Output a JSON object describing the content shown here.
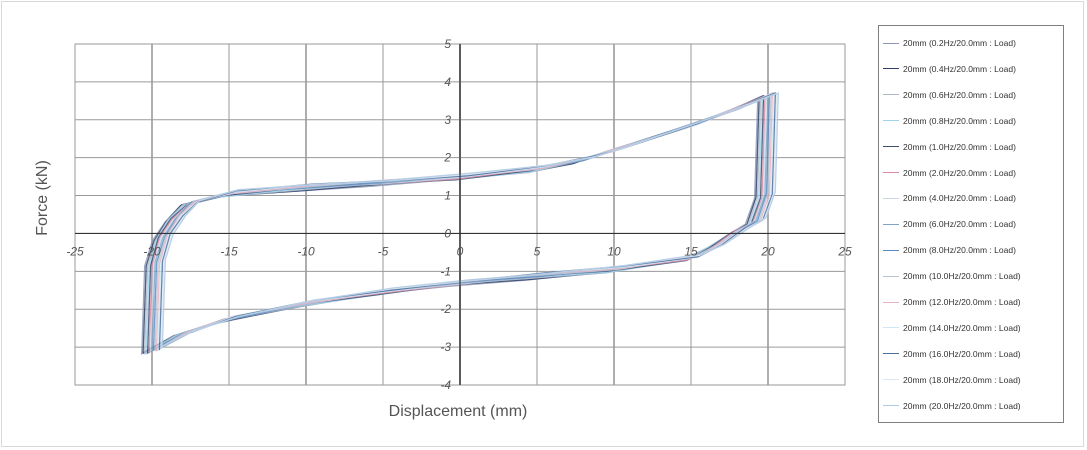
{
  "chart_data": {
    "type": "line",
    "title": "",
    "xlabel": "Displacement (mm)",
    "ylabel": "Force (kN)",
    "xlim": [
      -25,
      25
    ],
    "ylim": [
      -4,
      5
    ],
    "x_ticks": [
      -25,
      -20,
      -15,
      -10,
      -5,
      0,
      5,
      10,
      15,
      20,
      25
    ],
    "y_ticks": [
      -4,
      -3,
      -2,
      -1,
      0,
      1,
      2,
      3,
      4,
      5
    ],
    "grid": true,
    "legend_position": "right",
    "series": [
      {
        "name": "20mm (0.2Hz/20.0mm : Load)",
        "color": "#8a97b5"
      },
      {
        "name": "20mm (0.4Hz/20.0mm : Load)",
        "color": "#2f3f66"
      },
      {
        "name": "20mm (0.6Hz/20.0mm : Load)",
        "color": "#a9b7c8"
      },
      {
        "name": "20mm (0.8Hz/20.0mm : Load)",
        "color": "#9fd3f0"
      },
      {
        "name": "20mm (1.0Hz/20.0mm : Load)",
        "color": "#3d4e6e"
      },
      {
        "name": "20mm (2.0Hz/20.0mm : Load)",
        "color": "#d98aa4"
      },
      {
        "name": "20mm (4.0Hz/20.0mm : Load)",
        "color": "#c7d9e8"
      },
      {
        "name": "20mm (6.0Hz/20.0mm : Load)",
        "color": "#7fa6c9"
      },
      {
        "name": "20mm (8.0Hz/20.0mm : Load)",
        "color": "#5a8bbf"
      },
      {
        "name": "20mm (10.0Hz/20.0mm : Load)",
        "color": "#b8c4d4"
      },
      {
        "name": "20mm (12.0Hz/20.0mm : Load)",
        "color": "#e5b3c3"
      },
      {
        "name": "20mm (14.0Hz/20.0mm : Load)",
        "color": "#cfe6f5"
      },
      {
        "name": "20mm (16.0Hz/20.0mm : Load)",
        "color": "#4a6fa0"
      },
      {
        "name": "20mm (18.0Hz/20.0mm : Load)",
        "color": "#dde7f0"
      },
      {
        "name": "20mm (20.0Hz/20.0mm : Load)",
        "color": "#aec9e3"
      }
    ],
    "loop": {
      "upper": [
        [
          -20,
          -3.1
        ],
        [
          -19.8,
          -0.8
        ],
        [
          -19.3,
          -0.1
        ],
        [
          -18.5,
          0.4
        ],
        [
          -17.5,
          0.8
        ],
        [
          -15,
          1.05
        ],
        [
          -10,
          1.22
        ],
        [
          -5,
          1.35
        ],
        [
          0,
          1.48
        ],
        [
          5,
          1.7
        ],
        [
          8,
          1.95
        ],
        [
          10,
          2.2
        ],
        [
          15,
          2.85
        ],
        [
          18,
          3.3
        ],
        [
          20,
          3.65
        ]
      ],
      "right_drop": [
        [
          20,
          3.65
        ],
        [
          19.8,
          1.0
        ],
        [
          19.2,
          0.3
        ],
        [
          18,
          0.05
        ],
        [
          16.5,
          -0.35
        ],
        [
          15,
          -0.65
        ]
      ],
      "lower": [
        [
          15,
          -0.65
        ],
        [
          10,
          -0.95
        ],
        [
          5,
          -1.12
        ],
        [
          0,
          -1.3
        ],
        [
          -5,
          -1.55
        ],
        [
          -10,
          -1.85
        ],
        [
          -15,
          -2.25
        ],
        [
          -18,
          -2.65
        ],
        [
          -20,
          -3.1
        ]
      ]
    }
  }
}
